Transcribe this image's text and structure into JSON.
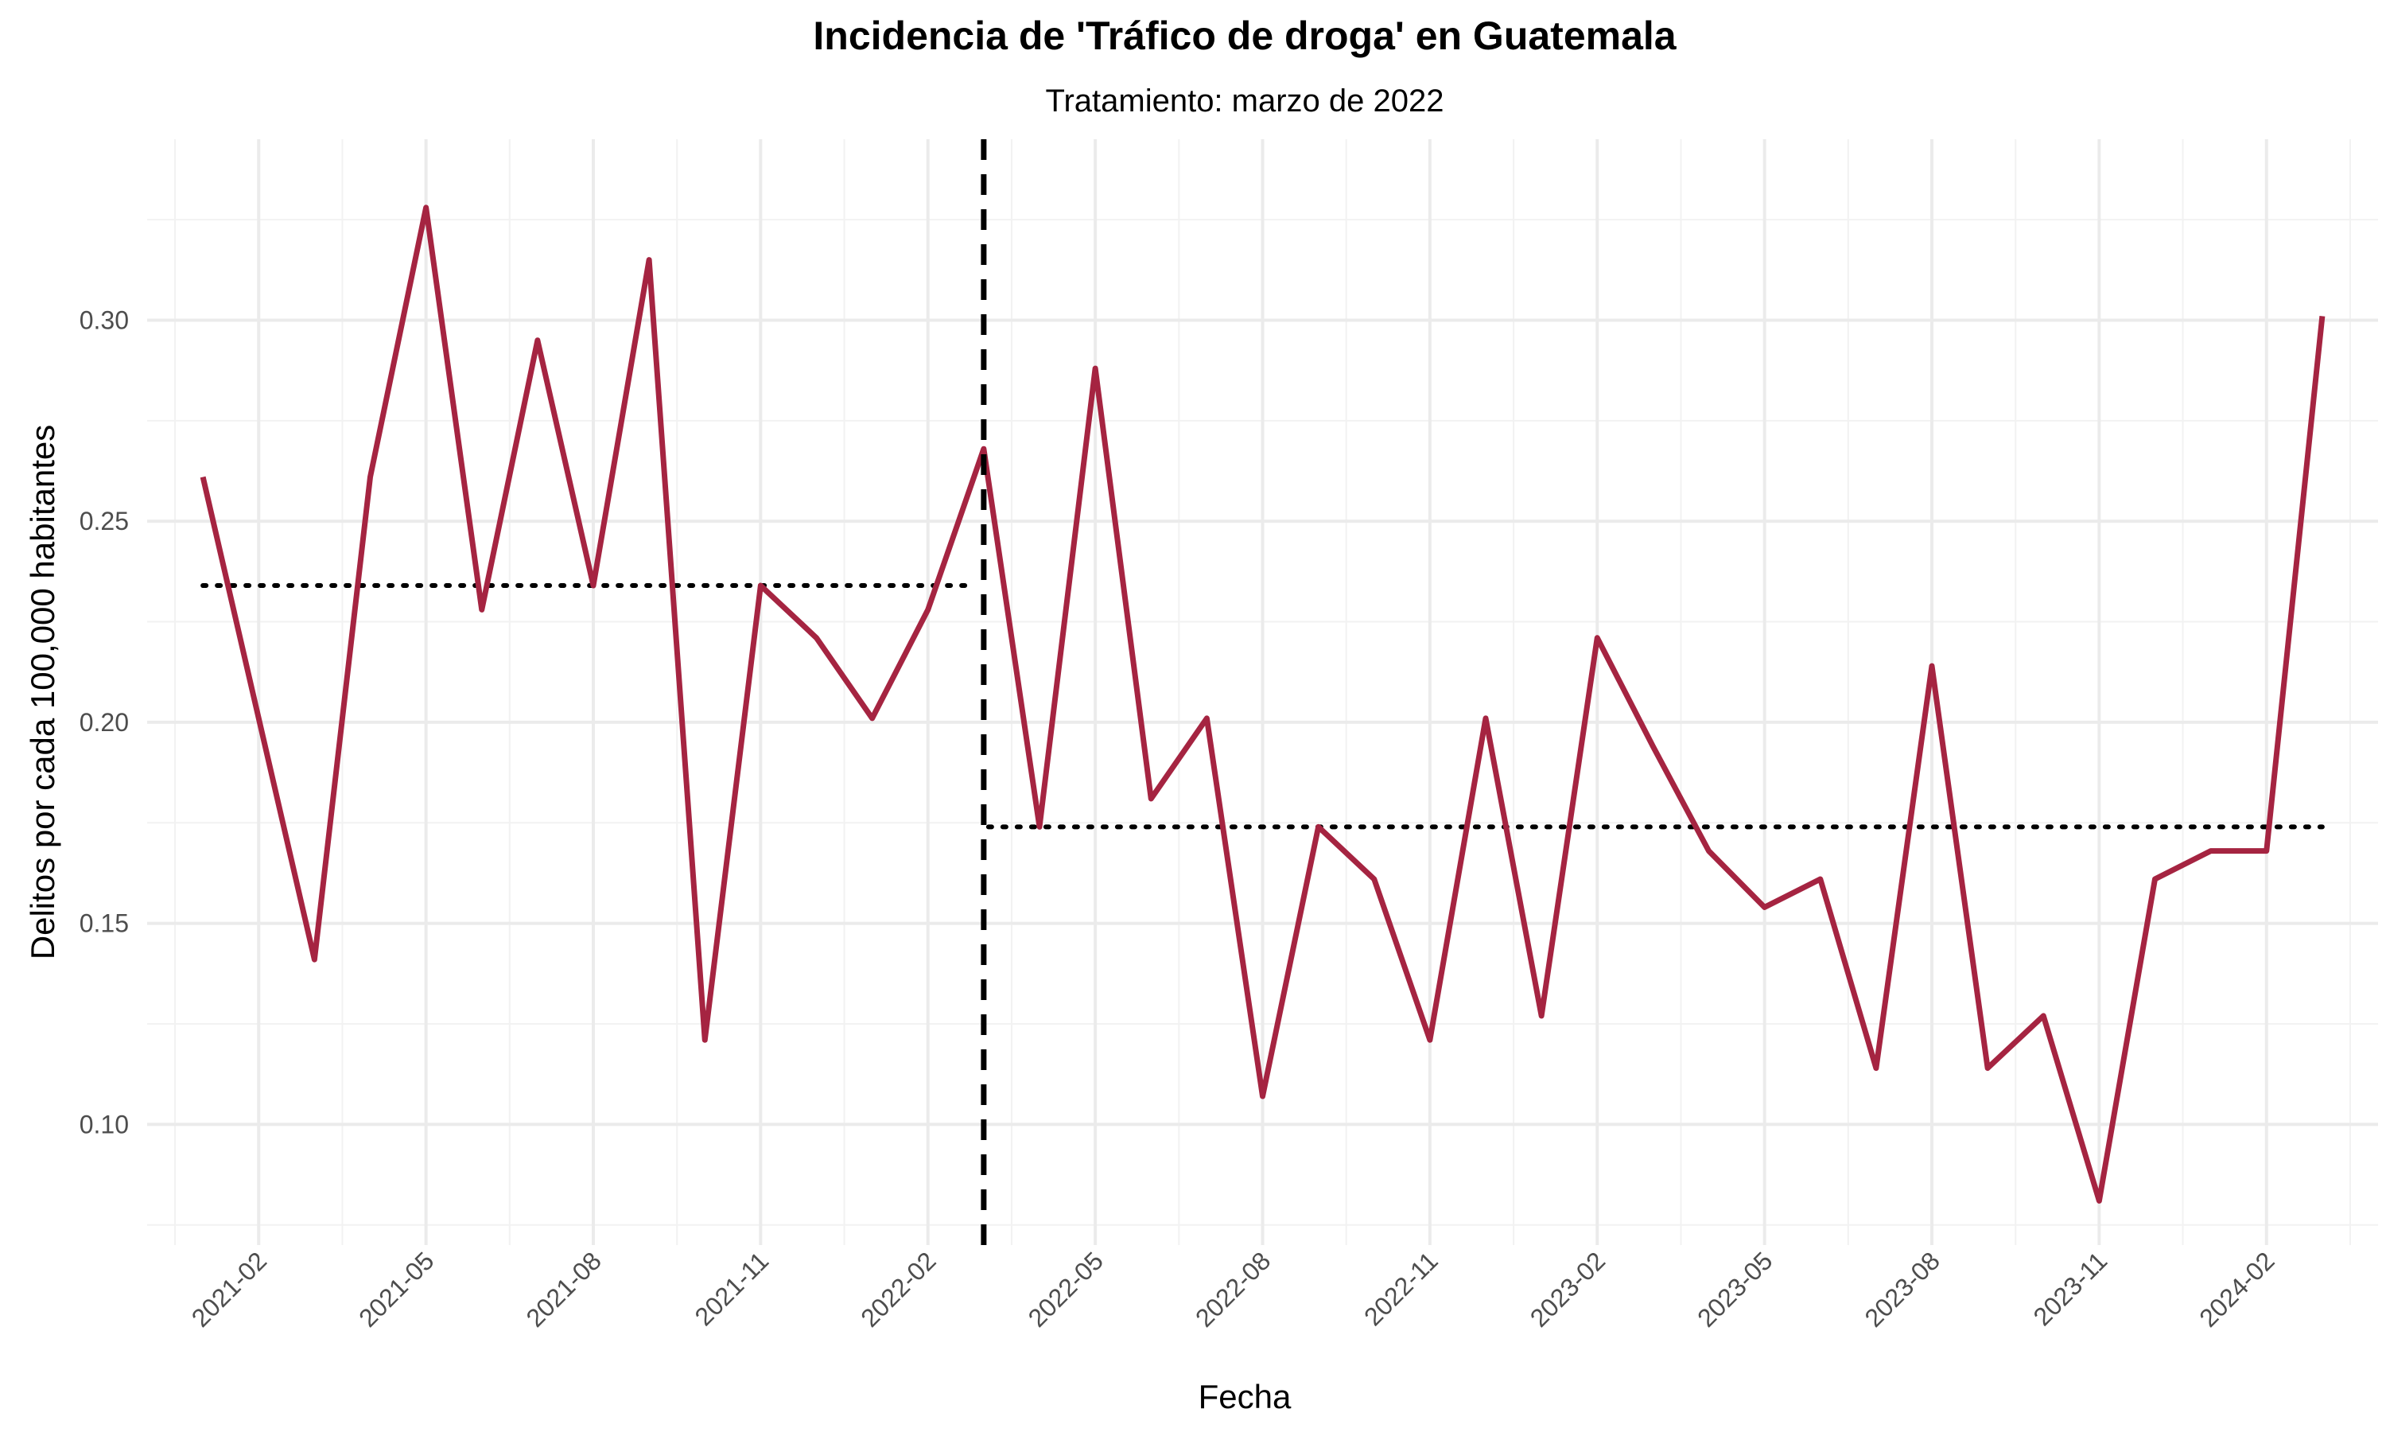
{
  "chart_data": {
    "type": "line",
    "title": "Incidencia de 'Tráfico de droga' en Guatemala",
    "subtitle": "Tratamiento: marzo de 2022",
    "xlabel": "Fecha",
    "ylabel": "Delitos por cada 100,000 habitantes",
    "xlim": [
      "2020-12-01",
      "2024-04-01"
    ],
    "ylim": [
      0.07,
      0.345
    ],
    "x_ticks": [
      "2021-02",
      "2021-05",
      "2021-08",
      "2021-11",
      "2022-02",
      "2022-05",
      "2022-08",
      "2022-11",
      "2023-02",
      "2023-05",
      "2023-08",
      "2023-11",
      "2024-02"
    ],
    "y_ticks": [
      0.1,
      0.15,
      0.2,
      0.25,
      0.3
    ],
    "y_tick_labels": [
      "0.10",
      "0.15",
      "0.20",
      "0.25",
      "0.30"
    ],
    "grid": true,
    "line_color": "#a52441",
    "treatment_date": "2022-03-01",
    "pre_mean": 0.234,
    "post_mean": 0.174,
    "series": [
      {
        "x": [
          "2021-01",
          "2021-02",
          "2021-03",
          "2021-04",
          "2021-05",
          "2021-06",
          "2021-07",
          "2021-08",
          "2021-09",
          "2021-10",
          "2021-11",
          "2021-12",
          "2022-01",
          "2022-02",
          "2022-03",
          "2022-04",
          "2022-05",
          "2022-06",
          "2022-07",
          "2022-08",
          "2022-09",
          "2022-10",
          "2022-11",
          "2022-12",
          "2023-01",
          "2023-02",
          "2023-03",
          "2023-04",
          "2023-05",
          "2023-06",
          "2023-07",
          "2023-08",
          "2023-09",
          "2023-10",
          "2023-11",
          "2023-12",
          "2024-01",
          "2024-02",
          "2024-03"
        ],
        "values": [
          0.261,
          0.201,
          0.141,
          0.261,
          0.328,
          0.228,
          0.295,
          0.234,
          0.315,
          0.121,
          0.234,
          0.221,
          0.201,
          0.228,
          0.268,
          0.174,
          0.288,
          0.181,
          0.201,
          0.107,
          0.174,
          0.161,
          0.121,
          0.201,
          0.127,
          0.221,
          0.194,
          0.168,
          0.154,
          0.161,
          0.114,
          0.214,
          0.114,
          0.127,
          0.081,
          0.161,
          0.168,
          0.168,
          0.301
        ]
      }
    ]
  }
}
